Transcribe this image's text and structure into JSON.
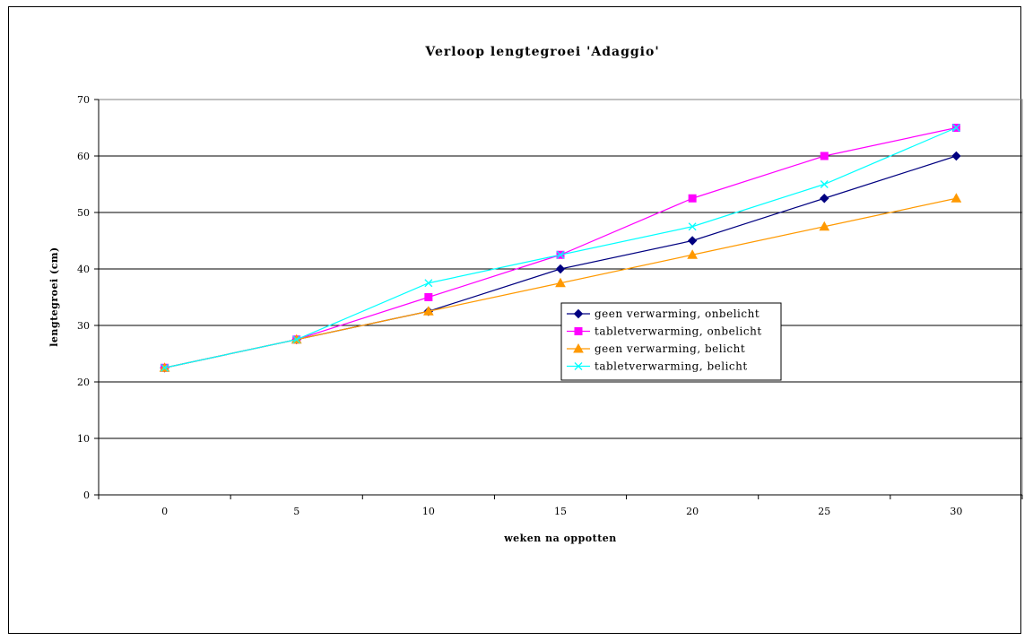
{
  "chart_data": {
    "type": "line",
    "title": "Verloop lengtegroei 'Adaggio'",
    "xlabel": "weken na oppotten",
    "ylabel": "lengtegroei (cm)",
    "x": [
      0,
      5,
      10,
      15,
      20,
      25,
      30
    ],
    "ylim": [
      0,
      70
    ],
    "yticks": [
      0,
      10,
      20,
      30,
      40,
      50,
      60,
      70
    ],
    "grid": true,
    "legend_position": "center-right",
    "series": [
      {
        "name": "geen verwarming, onbelicht",
        "color": "#000080",
        "marker": "diamond",
        "values": [
          22.5,
          27.5,
          32.5,
          40,
          45,
          52.5,
          60
        ]
      },
      {
        "name": "tabletverwarming, onbelicht",
        "color": "#ff00ff",
        "marker": "square",
        "values": [
          22.5,
          27.5,
          35,
          42.5,
          52.5,
          60,
          65
        ]
      },
      {
        "name": "geen verwarming, belicht",
        "color": "#ff9900",
        "marker": "triangle",
        "values": [
          22.5,
          27.5,
          32.5,
          37.5,
          42.5,
          47.5,
          52.5
        ]
      },
      {
        "name": "tabletverwarming, belicht",
        "color": "#00ffff",
        "marker": "x",
        "values": [
          22.5,
          27.5,
          37.5,
          42.5,
          47.5,
          55,
          65
        ]
      }
    ]
  }
}
